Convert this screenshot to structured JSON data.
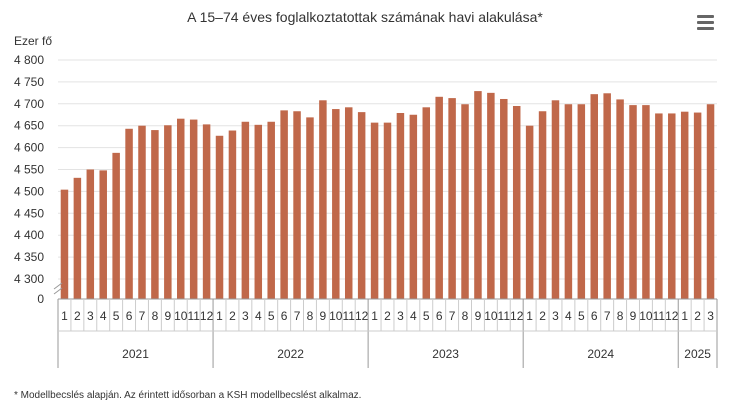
{
  "chart_data": {
    "type": "bar",
    "title": "A 15–74 éves foglalkoztatottak számának havi alakulása*",
    "ylabel": "Ezer fő",
    "xlabel": "",
    "ylim": [
      4300,
      4800
    ],
    "yaxis_break": true,
    "y_ticks": [
      "4 800",
      "4 750",
      "4 700",
      "4 650",
      "4 600",
      "4 550",
      "4 500",
      "4 450",
      "4 400",
      "4 350",
      "4 300",
      "0"
    ],
    "grid": true,
    "legend": "none",
    "bar_color": "#c0684a",
    "years": [
      {
        "label": "2021",
        "months": [
          "1",
          "2",
          "3",
          "4",
          "5",
          "6",
          "7",
          "8",
          "9",
          "10",
          "11",
          "12"
        ],
        "values": [
          4504,
          4531,
          4550,
          4548,
          4588,
          4643,
          4650,
          4640,
          4651,
          4666,
          4664,
          4653
        ]
      },
      {
        "label": "2022",
        "months": [
          "1",
          "2",
          "3",
          "4",
          "5",
          "6",
          "7",
          "8",
          "9",
          "10",
          "11",
          "12"
        ],
        "values": [
          4627,
          4639,
          4659,
          4652,
          4659,
          4685,
          4683,
          4669,
          4708,
          4688,
          4692,
          4681
        ]
      },
      {
        "label": "2023",
        "months": [
          "1",
          "2",
          "3",
          "4",
          "5",
          "6",
          "7",
          "8",
          "9",
          "10",
          "11",
          "12"
        ],
        "values": [
          4657,
          4657,
          4679,
          4675,
          4692,
          4716,
          4713,
          4699,
          4729,
          4725,
          4711,
          4695
        ]
      },
      {
        "label": "2024",
        "months": [
          "1",
          "2",
          "3",
          "4",
          "5",
          "6",
          "7",
          "8",
          "9",
          "10",
          "11",
          "12"
        ],
        "values": [
          4650,
          4683,
          4708,
          4699,
          4699,
          4722,
          4724,
          4710,
          4697,
          4697,
          4678,
          4678
        ]
      },
      {
        "label": "2025",
        "months": [
          "1",
          "2",
          "3"
        ],
        "values": [
          4682,
          4680,
          4699
        ]
      }
    ]
  },
  "footnote": "* Modellbecslés alapján. Az érintett idősorban a KSH modellbecslést alkalmaz.",
  "menu_icon": "hamburger-menu-icon"
}
